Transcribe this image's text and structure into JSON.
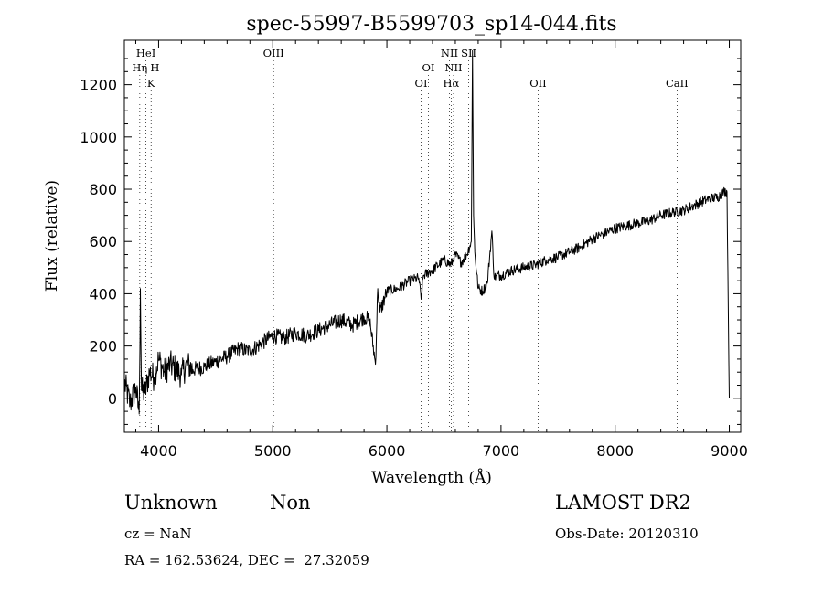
{
  "chart_data": {
    "type": "line",
    "title": "spec-55997-B5599703_sp14-044.fits",
    "xlabel": "Wavelength (Å)",
    "ylabel": "Flux (relative)",
    "xlim": [
      3700,
      9100
    ],
    "ylim": [
      -130,
      1370
    ],
    "x_ticks": [
      4000,
      5000,
      6000,
      7000,
      8000,
      9000
    ],
    "y_ticks": [
      0,
      200,
      400,
      600,
      800,
      1000,
      1200
    ],
    "grid": false,
    "legend": "none",
    "line_color": "#000000",
    "series": [
      {
        "x": [
          3700,
          3750,
          3800,
          3830,
          3840,
          3850,
          3880,
          3920,
          3960,
          4000,
          4050,
          4100,
          4150,
          4200,
          4250,
          4300,
          4400,
          4500,
          4600,
          4700,
          4800,
          4900,
          5000,
          5100,
          5200,
          5300,
          5400,
          5500,
          5600,
          5700,
          5800,
          5850,
          5900,
          5920,
          5940,
          6000,
          6100,
          6200,
          6280,
          6300,
          6320,
          6400,
          6500,
          6560,
          6600,
          6650,
          6700,
          6740,
          6750,
          6760,
          6770,
          6800,
          6840,
          6880,
          6920,
          6940,
          6960,
          7000,
          7100,
          7200,
          7300,
          7400,
          7500,
          7600,
          7700,
          7800,
          7900,
          8000,
          8100,
          8200,
          8300,
          8400,
          8500,
          8600,
          8700,
          8800,
          8900,
          8950,
          8980,
          9000
        ],
        "y": [
          60,
          -20,
          40,
          -60,
          420,
          30,
          20,
          100,
          80,
          150,
          100,
          130,
          110,
          90,
          130,
          110,
          120,
          140,
          160,
          190,
          180,
          210,
          240,
          230,
          250,
          240,
          260,
          280,
          300,
          280,
          310,
          300,
          130,
          420,
          330,
          410,
          420,
          450,
          460,
          380,
          470,
          490,
          530,
          510,
          550,
          520,
          550,
          600,
          1330,
          700,
          560,
          420,
          410,
          440,
          640,
          460,
          470,
          470,
          490,
          500,
          510,
          530,
          540,
          560,
          580,
          610,
          630,
          650,
          660,
          670,
          680,
          700,
          710,
          720,
          740,
          760,
          770,
          790,
          790,
          0
        ]
      }
    ],
    "spectral_lines": [
      {
        "label": "HeI",
        "x": 3889,
        "row": 1
      },
      {
        "label": "Hη",
        "x": 3835,
        "row": 2
      },
      {
        "label": "H",
        "x": 3968,
        "row": 2
      },
      {
        "label": "K",
        "x": 3934,
        "row": 3
      },
      {
        "label": "OIII",
        "x": 5007,
        "row": 1
      },
      {
        "label": "OI",
        "x": 6364,
        "row": 2
      },
      {
        "label": "OI",
        "x": 6300,
        "row": 3
      },
      {
        "label": "NII",
        "x": 6548,
        "row": 1
      },
      {
        "label": "SII",
        "x": 6717,
        "row": 1
      },
      {
        "label": "NII",
        "x": 6584,
        "row": 2
      },
      {
        "label": "Hα",
        "x": 6563,
        "row": 3
      },
      {
        "label": "OII",
        "x": 7325,
        "row": 3
      },
      {
        "label": "CaII",
        "x": 8542,
        "row": 3
      }
    ]
  },
  "footer": {
    "class": "Unknown",
    "subclass": "Non",
    "survey": "LAMOST DR2",
    "cz": "cz = NaN",
    "obs_date": "Obs-Date: 20120310",
    "coords": "RA = 162.53624, DEC =  27.32059"
  }
}
